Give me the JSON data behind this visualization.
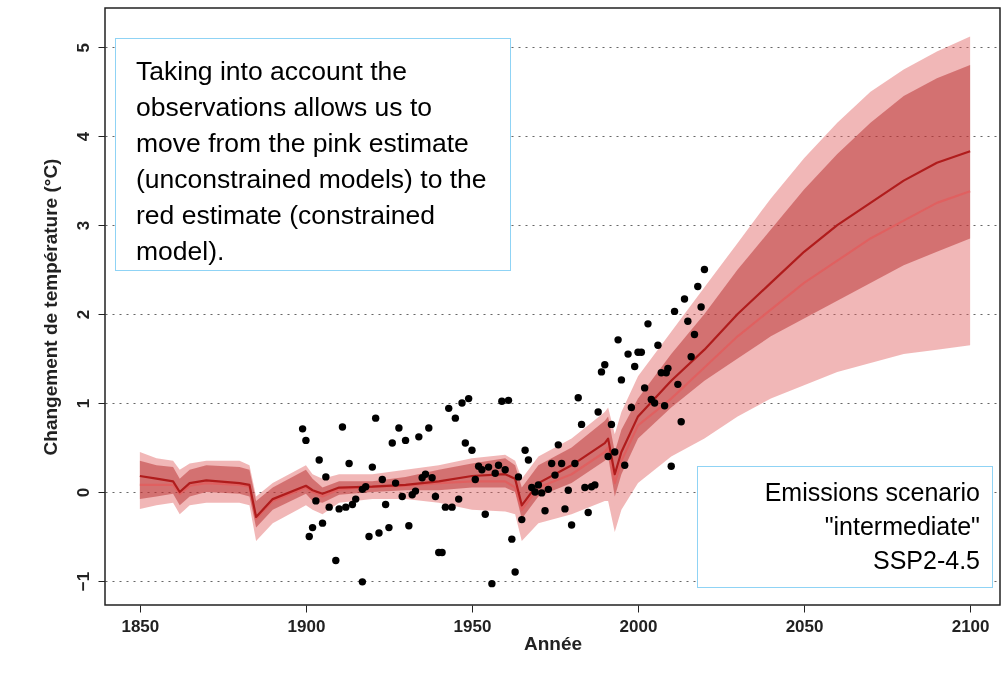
{
  "chart_data": {
    "type": "line",
    "xlabel": "Année",
    "ylabel": "Changement de température (°C)",
    "annotations": [
      "Taking into account the observations allows us to move from the pink estimate (unconstrained models) to the red estimate (constrained model).",
      "Emissions scenario\n\"intermediate\"\nSSP2-4.5"
    ],
    "xlim": [
      1839.5,
      2109
    ],
    "xticks": [
      1850,
      1900,
      1950,
      2000,
      2050,
      2100
    ],
    "ylim": [
      -1.27,
      5.44
    ],
    "yticks": [
      -1,
      0,
      1,
      2,
      3,
      4,
      5
    ],
    "grid": "y",
    "line_style": "solid",
    "series": [
      {
        "color": "#e06060",
        "x": [
          1850,
          1855,
          1860,
          1862,
          1865,
          1870,
          1880,
          1883,
          1885,
          1890,
          1900,
          1902,
          1905,
          1910,
          1920,
          1930,
          1940,
          1950,
          1960,
          1963,
          1965,
          1970,
          1980,
          1990,
          1991,
          1993,
          1995,
          2000,
          2010,
          2020,
          2030,
          2040,
          2050,
          2060,
          2070,
          2080,
          2090,
          2100
        ],
        "values": [
          0.08,
          0.08,
          0.08,
          -0.02,
          0.07,
          0.1,
          0.08,
          0.06,
          -0.3,
          -0.1,
          0.05,
          0.0,
          -0.05,
          0.03,
          0.06,
          0.07,
          0.1,
          0.12,
          0.12,
          0.05,
          -0.2,
          0.05,
          0.2,
          0.45,
          0.5,
          0.1,
          0.35,
          0.75,
          1.05,
          1.4,
          1.75,
          2.05,
          2.35,
          2.6,
          2.85,
          3.05,
          3.25,
          3.38
        ],
        "lower": [
          -0.19,
          -0.15,
          -0.12,
          -0.25,
          -0.15,
          -0.12,
          -0.12,
          -0.15,
          -0.55,
          -0.35,
          -0.15,
          -0.2,
          -0.25,
          -0.12,
          -0.08,
          -0.08,
          -0.12,
          -0.2,
          -0.22,
          -0.25,
          -0.55,
          -0.35,
          -0.25,
          -0.1,
          -0.1,
          -0.45,
          -0.2,
          0.1,
          0.4,
          0.6,
          0.85,
          1.05,
          1.2,
          1.35,
          1.45,
          1.55,
          1.6,
          1.65
        ],
        "upper": [
          0.45,
          0.38,
          0.35,
          0.25,
          0.32,
          0.35,
          0.35,
          0.3,
          -0.05,
          0.1,
          0.3,
          0.2,
          0.15,
          0.2,
          0.2,
          0.25,
          0.3,
          0.38,
          0.42,
          0.35,
          0.15,
          0.4,
          0.6,
          0.9,
          0.95,
          0.65,
          0.9,
          1.3,
          1.8,
          2.3,
          2.8,
          3.3,
          3.75,
          4.15,
          4.5,
          4.75,
          4.95,
          5.12
        ]
      },
      {
        "color": "#b01c1c",
        "x": [
          1850,
          1855,
          1860,
          1862,
          1865,
          1870,
          1880,
          1883,
          1885,
          1890,
          1900,
          1902,
          1905,
          1910,
          1920,
          1930,
          1940,
          1950,
          1960,
          1963,
          1965,
          1970,
          1980,
          1990,
          1991,
          1993,
          1995,
          2000,
          2010,
          2020,
          2030,
          2040,
          2050,
          2060,
          2070,
          2080,
          2090,
          2100
        ],
        "values": [
          0.18,
          0.15,
          0.12,
          0.0,
          0.1,
          0.13,
          0.1,
          0.08,
          -0.28,
          -0.08,
          0.07,
          0.02,
          -0.02,
          0.05,
          0.06,
          0.08,
          0.12,
          0.18,
          0.2,
          0.15,
          -0.15,
          0.1,
          0.3,
          0.55,
          0.6,
          0.2,
          0.45,
          0.85,
          1.25,
          1.6,
          2.0,
          2.35,
          2.7,
          3.0,
          3.25,
          3.5,
          3.7,
          3.83
        ],
        "lower": [
          -0.08,
          -0.05,
          -0.02,
          -0.15,
          -0.05,
          0.0,
          -0.02,
          -0.05,
          -0.4,
          -0.2,
          -0.02,
          -0.1,
          -0.12,
          -0.03,
          0.0,
          0.02,
          0.02,
          0.05,
          0.05,
          0.0,
          -0.3,
          -0.05,
          0.1,
          0.35,
          0.4,
          -0.05,
          0.2,
          0.6,
          0.95,
          1.25,
          1.5,
          1.75,
          1.95,
          2.15,
          2.35,
          2.55,
          2.7,
          2.85
        ],
        "upper": [
          0.35,
          0.3,
          0.28,
          0.15,
          0.25,
          0.3,
          0.28,
          0.25,
          -0.1,
          0.05,
          0.25,
          0.15,
          0.05,
          0.12,
          0.12,
          0.17,
          0.25,
          0.32,
          0.38,
          0.3,
          0.05,
          0.3,
          0.5,
          0.8,
          0.85,
          0.45,
          0.7,
          1.05,
          1.55,
          2.0,
          2.5,
          2.95,
          3.4,
          3.8,
          4.15,
          4.45,
          4.65,
          4.8
        ]
      },
      {
        "type": "scatter",
        "color": "#000000",
        "marker": "circle",
        "x": [
          1899,
          1900,
          1904,
          1906,
          1901,
          1902,
          1903,
          1905,
          1907,
          1909,
          1910,
          1911,
          1912,
          1913,
          1915,
          1914,
          1917,
          1917,
          1918,
          1919,
          1920,
          1921,
          1922,
          1923,
          1924,
          1925,
          1926,
          1927,
          1928,
          1929,
          1930,
          1931,
          1932,
          1933,
          1934,
          1935,
          1936,
          1937,
          1938,
          1939,
          1940,
          1941,
          1942,
          1943,
          1944,
          1945,
          1946,
          1947,
          1948,
          1949,
          1950,
          1951,
          1952,
          1953,
          1954,
          1955,
          1956,
          1957,
          1958,
          1959,
          1961,
          1960,
          1962,
          1963,
          1964,
          1965,
          1966,
          1967,
          1968,
          1969,
          1970,
          1971,
          1972,
          1973,
          1974,
          1975,
          1976,
          1977,
          1978,
          1979,
          1980,
          1981,
          1982,
          1983,
          1984,
          1985,
          1986,
          1987,
          1988,
          1989,
          1990,
          1991,
          1992,
          1993,
          1994,
          1995,
          1996,
          1997,
          1998,
          1999,
          2000,
          2001,
          2002,
          2003,
          2004,
          2005,
          2006,
          2007,
          2008,
          2008.5,
          2009,
          2010,
          2011,
          2012,
          2013,
          2014,
          2015,
          2016,
          2017,
          2018,
          2019,
          2020
        ],
        "values": [
          0.71,
          0.58,
          0.36,
          0.17,
          -0.5,
          -0.4,
          -0.1,
          -0.35,
          -0.17,
          -0.77,
          -0.19,
          0.73,
          -0.17,
          0.32,
          -0.08,
          -0.14,
          0.03,
          -1.01,
          0.06,
          -0.5,
          0.28,
          0.83,
          -0.46,
          0.14,
          -0.14,
          -0.4,
          0.55,
          0.1,
          0.72,
          -0.05,
          0.58,
          -0.38,
          -0.03,
          0.01,
          0.62,
          0.16,
          0.2,
          0.72,
          0.16,
          -0.05,
          -0.68,
          -0.68,
          -0.17,
          0.94,
          -0.17,
          0.83,
          -0.08,
          1.0,
          0.55,
          1.05,
          0.47,
          0.14,
          0.29,
          0.25,
          -0.25,
          0.28,
          -1.03,
          0.21,
          0.3,
          1.02,
          1.03,
          0.25,
          -0.53,
          -0.9,
          0.17,
          -0.31,
          0.47,
          0.36,
          0.05,
          0.0,
          0.08,
          -0.01,
          -0.21,
          0.03,
          0.32,
          0.19,
          0.53,
          0.32,
          -0.19,
          0.02,
          -0.37,
          0.32,
          1.06,
          0.76,
          0.05,
          -0.23,
          0.06,
          0.08,
          0.9,
          1.35,
          1.43,
          0.4,
          0.76,
          0.45,
          1.71,
          1.26,
          0.3,
          1.55,
          0.95,
          1.41,
          1.57,
          1.57,
          1.17,
          1.89,
          1.04,
          1.0,
          1.65,
          1.34,
          0.97,
          1.34,
          1.39,
          0.29,
          2.03,
          1.21,
          0.79,
          2.17,
          1.92,
          1.52,
          1.77,
          2.31,
          2.08,
          2.5
        ]
      }
    ]
  }
}
